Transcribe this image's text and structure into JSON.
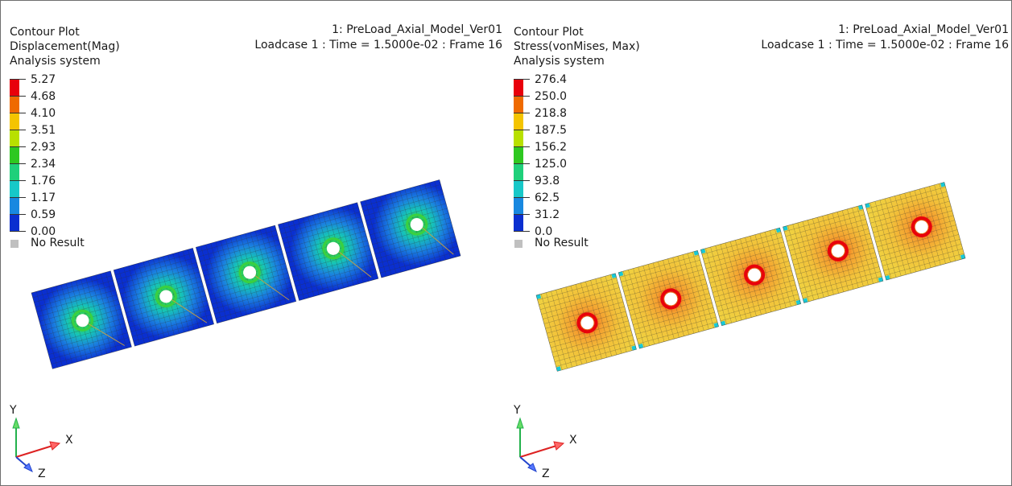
{
  "left_view": {
    "title_lines": [
      "Contour Plot",
      "Displacement(Mag)",
      "Analysis system"
    ],
    "model_name": "1: PreLoad_Axial_Model_Ver01",
    "loadcase": "Loadcase 1 : Time = 1.5000e-02 : Frame 16",
    "legend_values": [
      "5.27",
      "4.68",
      "4.10",
      "3.51",
      "2.93",
      "2.34",
      "1.76",
      "1.17",
      "0.59",
      "0.00"
    ],
    "legend_colors": [
      "#e8000b",
      "#ef6a00",
      "#f4c400",
      "#b8e000",
      "#2ec820",
      "#1fd07a",
      "#17c8c8",
      "#1888e0",
      "#0a2fd0"
    ],
    "no_result_label": "No Result",
    "plot_type": "displacement",
    "triad": {
      "y": "Y",
      "x": "X",
      "z": "Z"
    }
  },
  "right_view": {
    "title_lines": [
      "Contour Plot",
      "Stress(vonMises, Max)",
      "Analysis system"
    ],
    "model_name": "1: PreLoad_Axial_Model_Ver01",
    "loadcase": "Loadcase 1 : Time = 1.5000e-02 : Frame 16",
    "legend_values": [
      "276.4",
      "250.0",
      "218.8",
      "187.5",
      "156.2",
      "125.0",
      "93.8",
      "62.5",
      "31.2",
      "0.0"
    ],
    "legend_colors": [
      "#e8000b",
      "#ef6a00",
      "#f4c400",
      "#b8e000",
      "#2ec820",
      "#1fd07a",
      "#17c8c8",
      "#1888e0",
      "#0a2fd0"
    ],
    "no_result_label": "No Result",
    "plot_type": "stress",
    "triad": {
      "y": "Y",
      "x": "X",
      "z": "Z"
    }
  },
  "colors": {
    "displacement_base": "#0a2fd0",
    "stress_base": "#f2c23a",
    "hole_ring_high": "#e8000b",
    "mesh_line": "#303030"
  }
}
